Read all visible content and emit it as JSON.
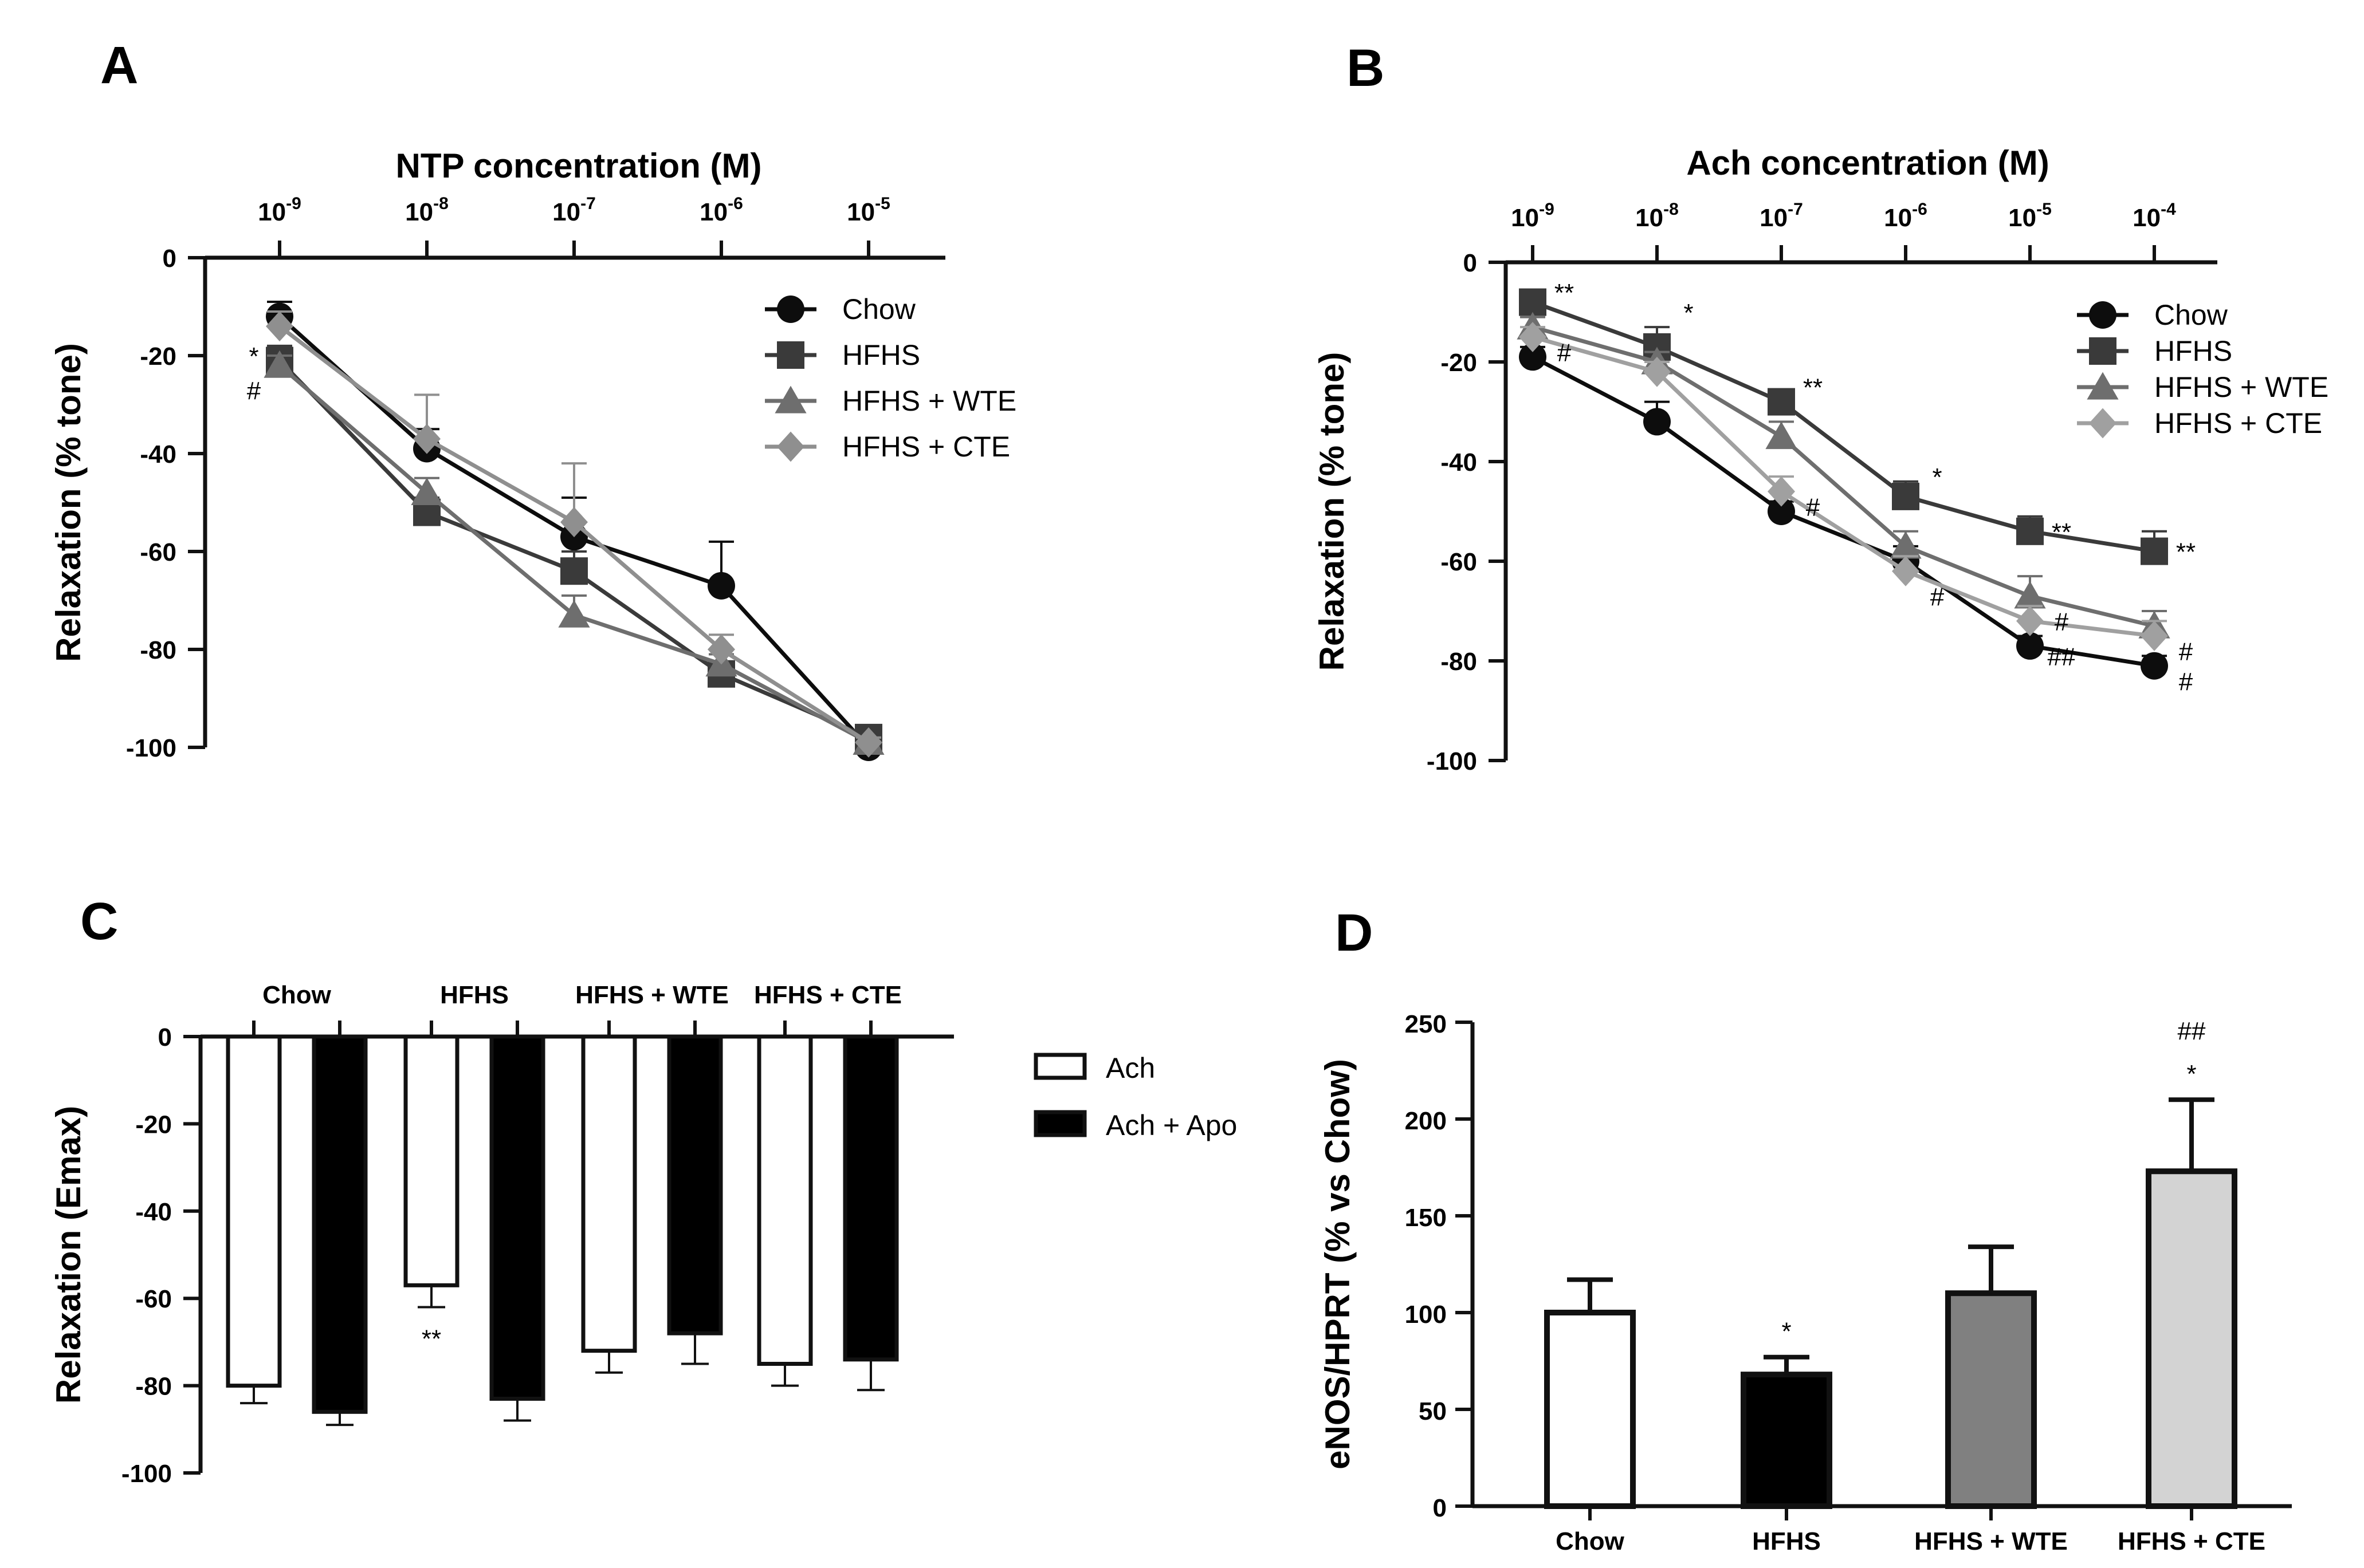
{
  "panels": {
    "A": "A",
    "B": "B",
    "C": "C",
    "D": "D"
  },
  "chart_data": [
    {
      "id": "A",
      "type": "line",
      "title": "NTP concentration (M)",
      "xlabel": "NTP concentration (M)",
      "ylabel": "Relaxation (% tone)",
      "x_exponents": [
        -9,
        -8,
        -7,
        -6,
        -5
      ],
      "x_tick_labels": [
        {
          "base": "10",
          "exp": "-9"
        },
        {
          "base": "10",
          "exp": "-8"
        },
        {
          "base": "10",
          "exp": "-7"
        },
        {
          "base": "10",
          "exp": "-6"
        },
        {
          "base": "10",
          "exp": "-5"
        }
      ],
      "ylim": [
        -100,
        0
      ],
      "yticks": [
        0,
        -20,
        -40,
        -60,
        -80,
        -100
      ],
      "legend_position": "top-right",
      "series": [
        {
          "name": "Chow",
          "color": "#0d0d0d",
          "marker": "circle",
          "values": [
            -12,
            -39,
            -57,
            -67,
            -100
          ],
          "err": [
            3,
            4,
            8,
            9,
            1
          ]
        },
        {
          "name": "HFHS",
          "color": "#3a3a3a",
          "marker": "square",
          "values": [
            -21,
            -52,
            -64,
            -85,
            -98
          ],
          "err": [
            3,
            3,
            4,
            2,
            1
          ]
        },
        {
          "name": "HFHS + WTE",
          "color": "#6e6e6e",
          "marker": "triangle",
          "values": [
            -22,
            -48,
            -73,
            -83,
            -99
          ],
          "err": [
            2,
            3,
            4,
            2,
            1
          ]
        },
        {
          "name": "HFHS + CTE",
          "color": "#8f8f8f",
          "marker": "diamond",
          "values": [
            -14,
            -37,
            -54,
            -80,
            -99
          ],
          "err": [
            3,
            9,
            12,
            3,
            1
          ]
        }
      ],
      "annotations": [
        {
          "text": "*",
          "x": -9,
          "y": -20
        },
        {
          "text": "#",
          "x": -9,
          "y": -27
        }
      ]
    },
    {
      "id": "B",
      "type": "line",
      "title": "Ach concentration (M)",
      "xlabel": "Ach concentration (M)",
      "ylabel": "Relaxation (% tone)",
      "x_exponents": [
        -9,
        -8,
        -7,
        -6,
        -5,
        -4
      ],
      "x_tick_labels": [
        {
          "base": "10",
          "exp": "-9"
        },
        {
          "base": "10",
          "exp": "-8"
        },
        {
          "base": "10",
          "exp": "-7"
        },
        {
          "base": "10",
          "exp": "-6"
        },
        {
          "base": "10",
          "exp": "-5"
        },
        {
          "base": "10",
          "exp": "-4"
        }
      ],
      "ylim": [
        -100,
        0
      ],
      "yticks": [
        0,
        -20,
        -40,
        -60,
        -80,
        -100
      ],
      "legend_position": "top-right",
      "series": [
        {
          "name": "Chow",
          "color": "#0d0d0d",
          "marker": "circle",
          "values": [
            -19,
            -32,
            -50,
            -60,
            -77,
            -81
          ],
          "err": [
            2,
            4,
            2,
            3,
            2,
            2
          ]
        },
        {
          "name": "HFHS",
          "color": "#3a3a3a",
          "marker": "square",
          "values": [
            -8,
            -17,
            -28,
            -47,
            -54,
            -58
          ],
          "err": [
            2,
            4,
            2,
            3,
            3,
            4
          ]
        },
        {
          "name": "HFHS + WTE",
          "color": "#6e6e6e",
          "marker": "triangle",
          "values": [
            -13,
            -20,
            -35,
            -57,
            -67,
            -73
          ],
          "err": [
            2,
            2,
            3,
            3,
            4,
            3
          ]
        },
        {
          "name": "HFHS + CTE",
          "color": "#a0a0a0",
          "marker": "diamond",
          "values": [
            -15,
            -22,
            -46,
            -62,
            -72,
            -75
          ],
          "err": [
            2,
            2,
            3,
            3,
            3,
            3
          ]
        }
      ],
      "annotations": [
        {
          "text": "**",
          "x": -9,
          "y": -6
        },
        {
          "text": "#",
          "x": -9,
          "y": -18
        },
        {
          "text": "*",
          "x": -8,
          "y": -10
        },
        {
          "text": "**",
          "x": -7,
          "y": -25
        },
        {
          "text": "#",
          "x": -7,
          "y": -49
        },
        {
          "text": "*",
          "x": -6,
          "y": -43
        },
        {
          "text": "#",
          "x": -6,
          "y": -67
        },
        {
          "text": "**",
          "x": -5,
          "y": -54
        },
        {
          "text": "#",
          "x": -5,
          "y": -72
        },
        {
          "text": "##",
          "x": -5,
          "y": -79
        },
        {
          "text": "**",
          "x": -4,
          "y": -58
        },
        {
          "text": "#",
          "x": -4,
          "y": -78
        },
        {
          "text": "#",
          "x": -4,
          "y": -84
        }
      ]
    },
    {
      "id": "C",
      "type": "bar",
      "ylabel": "Relaxation (Emax)",
      "categories": [
        "Chow",
        "HFHS",
        "HFHS + WTE",
        "HFHS + CTE"
      ],
      "ylim": [
        -100,
        0
      ],
      "yticks": [
        0,
        -20,
        -40,
        -60,
        -80,
        -100
      ],
      "legend_position": "right",
      "series": [
        {
          "name": "Ach",
          "fill": "#ffffff",
          "values": [
            -80,
            -57,
            -72,
            -75
          ],
          "err": [
            4,
            5,
            5,
            5
          ]
        },
        {
          "name": "Ach + Apo",
          "fill": "#000000",
          "values": [
            -86,
            -83,
            -68,
            -74
          ],
          "err": [
            3,
            5,
            7,
            7
          ]
        }
      ],
      "annotations": [
        {
          "text": "**",
          "category": "HFHS",
          "series": "Ach"
        }
      ]
    },
    {
      "id": "D",
      "type": "bar",
      "ylabel": "eNOS/HPRT (% vs Chow)",
      "categories": [
        "Chow",
        "HFHS",
        "HFHS + WTE",
        "HFHS + CTE"
      ],
      "values": [
        100,
        68,
        110,
        173
      ],
      "err": [
        17,
        9,
        24,
        37
      ],
      "fills": [
        "#ffffff",
        "#000000",
        "#808080",
        "#d3d3d3"
      ],
      "ylim": [
        0,
        250
      ],
      "yticks": [
        0,
        50,
        100,
        150,
        200,
        250
      ],
      "annotations": [
        {
          "text": "*",
          "category": "HFHS"
        },
        {
          "text": "*",
          "category": "HFHS + CTE"
        },
        {
          "text": "##",
          "category": "HFHS + CTE"
        }
      ]
    }
  ]
}
